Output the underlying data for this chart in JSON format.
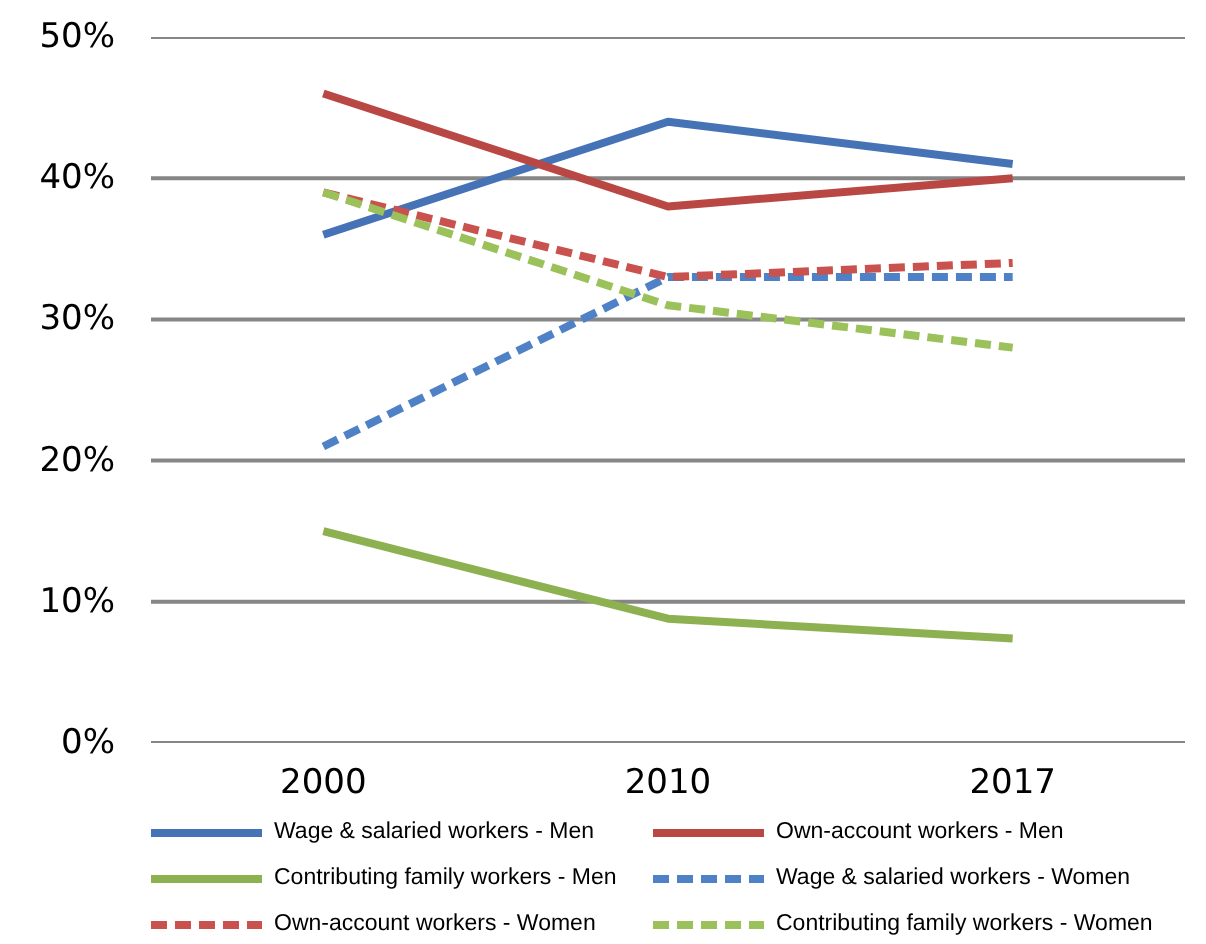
{
  "chart_data": {
    "type": "line",
    "categories": [
      "2000",
      "2010",
      "2017"
    ],
    "series": [
      {
        "name": "Wage & salaried workers - Men",
        "color": "#4573b5",
        "line_style": "solid",
        "values": [
          36,
          44,
          41
        ]
      },
      {
        "name": "Own-account workers - Men",
        "color": "#b94845",
        "line_style": "solid",
        "values": [
          46,
          38,
          40
        ]
      },
      {
        "name": "Contributing family workers - Men",
        "color": "#8db050",
        "line_style": "solid",
        "values": [
          15,
          8.8,
          7.4
        ]
      },
      {
        "name": "Wage & salaried workers - Women",
        "color": "#4f81c7",
        "line_style": "dashed",
        "values": [
          21,
          33,
          33
        ]
      },
      {
        "name": "Own-account workers - Women",
        "color": "#c9514e",
        "line_style": "dashed",
        "values": [
          39,
          33,
          34
        ]
      },
      {
        "name": "Contributing family workers - Women",
        "color": "#9bc25a",
        "line_style": "dashed",
        "values": [
          39,
          31,
          28
        ]
      }
    ],
    "ylim": [
      0,
      50
    ],
    "yticks": [
      {
        "value": 0,
        "label": "0%"
      },
      {
        "value": 10,
        "label": "10%"
      },
      {
        "value": 20,
        "label": "20%"
      },
      {
        "value": 30,
        "label": "30%"
      },
      {
        "value": 40,
        "label": "40%"
      },
      {
        "value": 50,
        "label": "50%"
      }
    ],
    "grid": "y",
    "legend": "bottom"
  }
}
